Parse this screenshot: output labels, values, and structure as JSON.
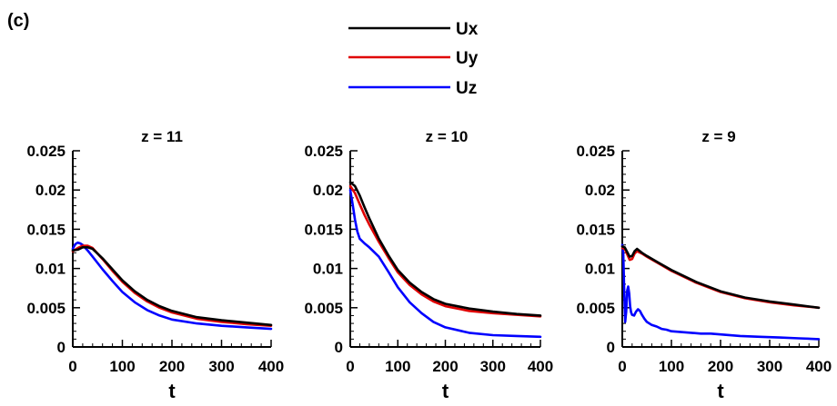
{
  "panel_label": "(c)",
  "legend": [
    {
      "name": "Ux",
      "color": "#000000"
    },
    {
      "name": "Uy",
      "color": "#e00000"
    },
    {
      "name": "Uz",
      "color": "#0000ff"
    }
  ],
  "chart_data": [
    {
      "type": "line",
      "title": "z = 11",
      "xlabel": "t",
      "ylabel": "",
      "xlim": [
        0,
        400
      ],
      "ylim": [
        0,
        0.025
      ],
      "xticks": [
        0,
        100,
        200,
        300,
        400
      ],
      "yticks": [
        0,
        0.005,
        0.01,
        0.015,
        0.02,
        0.025
      ],
      "xtick_labels": [
        "0",
        "100",
        "200",
        "300",
        "400"
      ],
      "ytick_labels": [
        "0",
        "0.005",
        "0.01",
        "0.015",
        "0.02",
        "0.025"
      ],
      "grid": false,
      "series": [
        {
          "name": "Ux",
          "color": "#000000",
          "x": [
            0,
            10,
            20,
            30,
            40,
            60,
            80,
            100,
            125,
            150,
            175,
            200,
            250,
            300,
            350,
            400
          ],
          "y": [
            0.0123,
            0.0124,
            0.0127,
            0.0127,
            0.0125,
            0.0113,
            0.0099,
            0.0085,
            0.0071,
            0.006,
            0.0052,
            0.0046,
            0.0038,
            0.0034,
            0.0031,
            0.0028
          ]
        },
        {
          "name": "Uy",
          "color": "#e00000",
          "x": [
            0,
            10,
            20,
            30,
            40,
            60,
            80,
            100,
            125,
            150,
            175,
            200,
            250,
            300,
            350,
            400
          ],
          "y": [
            0.0122,
            0.0126,
            0.0129,
            0.0129,
            0.0126,
            0.0112,
            0.0097,
            0.0083,
            0.0069,
            0.0058,
            0.005,
            0.0044,
            0.0036,
            0.0032,
            0.0029,
            0.0027
          ]
        },
        {
          "name": "Uz",
          "color": "#0000ff",
          "x": [
            0,
            5,
            10,
            15,
            20,
            30,
            40,
            60,
            80,
            100,
            125,
            150,
            175,
            200,
            250,
            300,
            350,
            400
          ],
          "y": [
            0.0125,
            0.0131,
            0.0133,
            0.0132,
            0.013,
            0.0123,
            0.0115,
            0.0099,
            0.0084,
            0.007,
            0.0057,
            0.0047,
            0.004,
            0.0035,
            0.003,
            0.0027,
            0.0025,
            0.0023
          ]
        }
      ]
    },
    {
      "type": "line",
      "title": "z = 10",
      "xlabel": "t",
      "ylabel": "",
      "xlim": [
        0,
        400
      ],
      "ylim": [
        0,
        0.025
      ],
      "xticks": [
        0,
        100,
        200,
        300,
        400
      ],
      "yticks": [
        0,
        0.005,
        0.01,
        0.015,
        0.02,
        0.025
      ],
      "xtick_labels": [
        "0",
        "100",
        "200",
        "300",
        "400"
      ],
      "ytick_labels": [
        "0",
        "0.005",
        "0.01",
        "0.015",
        "0.02",
        "0.025"
      ],
      "grid": false,
      "series": [
        {
          "name": "Ux",
          "color": "#000000",
          "x": [
            0,
            10,
            20,
            30,
            40,
            60,
            80,
            100,
            125,
            150,
            175,
            200,
            250,
            300,
            350,
            400
          ],
          "y": [
            0.021,
            0.0205,
            0.0193,
            0.0178,
            0.0164,
            0.0138,
            0.0117,
            0.0098,
            0.0082,
            0.007,
            0.0061,
            0.0055,
            0.0049,
            0.0045,
            0.0042,
            0.004
          ]
        },
        {
          "name": "Uy",
          "color": "#e00000",
          "x": [
            0,
            10,
            20,
            30,
            40,
            60,
            80,
            100,
            125,
            150,
            175,
            200,
            250,
            300,
            350,
            400
          ],
          "y": [
            0.0205,
            0.0196,
            0.0182,
            0.0168,
            0.0156,
            0.0134,
            0.0114,
            0.0095,
            0.0079,
            0.0067,
            0.0058,
            0.0052,
            0.0046,
            0.0043,
            0.0041,
            0.0039
          ]
        },
        {
          "name": "Uz",
          "color": "#0000ff",
          "x": [
            0,
            5,
            10,
            15,
            20,
            30,
            40,
            60,
            80,
            100,
            125,
            150,
            175,
            200,
            250,
            300,
            350,
            400
          ],
          "y": [
            0.02,
            0.0182,
            0.0162,
            0.0147,
            0.0138,
            0.0132,
            0.0127,
            0.0115,
            0.0096,
            0.0076,
            0.0057,
            0.0043,
            0.0032,
            0.0025,
            0.0018,
            0.0015,
            0.0014,
            0.0013
          ]
        }
      ]
    },
    {
      "type": "line",
      "title": "z = 9",
      "xlabel": "t",
      "ylabel": "",
      "xlim": [
        0,
        400
      ],
      "ylim": [
        0,
        0.025
      ],
      "xticks": [
        0,
        100,
        200,
        300,
        400
      ],
      "yticks": [
        0,
        0.005,
        0.01,
        0.015,
        0.02,
        0.025
      ],
      "xtick_labels": [
        "0",
        "100",
        "200",
        "300",
        "400"
      ],
      "ytick_labels": [
        "0",
        "0.005",
        "0.01",
        "0.015",
        "0.02",
        "0.025"
      ],
      "grid": false,
      "series": [
        {
          "name": "Ux",
          "color": "#000000",
          "x": [
            0,
            5,
            10,
            15,
            20,
            25,
            30,
            40,
            50,
            75,
            100,
            150,
            200,
            250,
            300,
            350,
            400
          ],
          "y": [
            0.0128,
            0.0127,
            0.0121,
            0.0115,
            0.0116,
            0.0122,
            0.0125,
            0.012,
            0.0116,
            0.0107,
            0.0098,
            0.0083,
            0.0071,
            0.0063,
            0.0058,
            0.0054,
            0.005
          ]
        },
        {
          "name": "Uy",
          "color": "#e00000",
          "x": [
            0,
            5,
            10,
            15,
            20,
            25,
            30,
            40,
            50,
            75,
            100,
            150,
            200,
            250,
            300,
            350,
            400
          ],
          "y": [
            0.0126,
            0.0125,
            0.0118,
            0.0111,
            0.0112,
            0.0119,
            0.0122,
            0.0119,
            0.0115,
            0.0106,
            0.0097,
            0.0082,
            0.007,
            0.0062,
            0.0057,
            0.0053,
            0.005
          ]
        },
        {
          "name": "Uz",
          "color": "#0000ff",
          "x": [
            0,
            2,
            4,
            6,
            8,
            10,
            12,
            14,
            16,
            18,
            20,
            24,
            28,
            32,
            36,
            40,
            45,
            50,
            60,
            70,
            80,
            90,
            100,
            120,
            140,
            160,
            180,
            200,
            240,
            280,
            320,
            360,
            400
          ],
          "y": [
            0.013,
            0.0118,
            0.0068,
            0.0032,
            0.0045,
            0.0072,
            0.0077,
            0.0068,
            0.0052,
            0.0044,
            0.0041,
            0.004,
            0.0045,
            0.0048,
            0.0046,
            0.0041,
            0.0036,
            0.0032,
            0.0028,
            0.0026,
            0.0023,
            0.0022,
            0.002,
            0.0019,
            0.0018,
            0.0017,
            0.0017,
            0.0016,
            0.0014,
            0.0013,
            0.0012,
            0.0011,
            0.001
          ]
        }
      ]
    }
  ]
}
